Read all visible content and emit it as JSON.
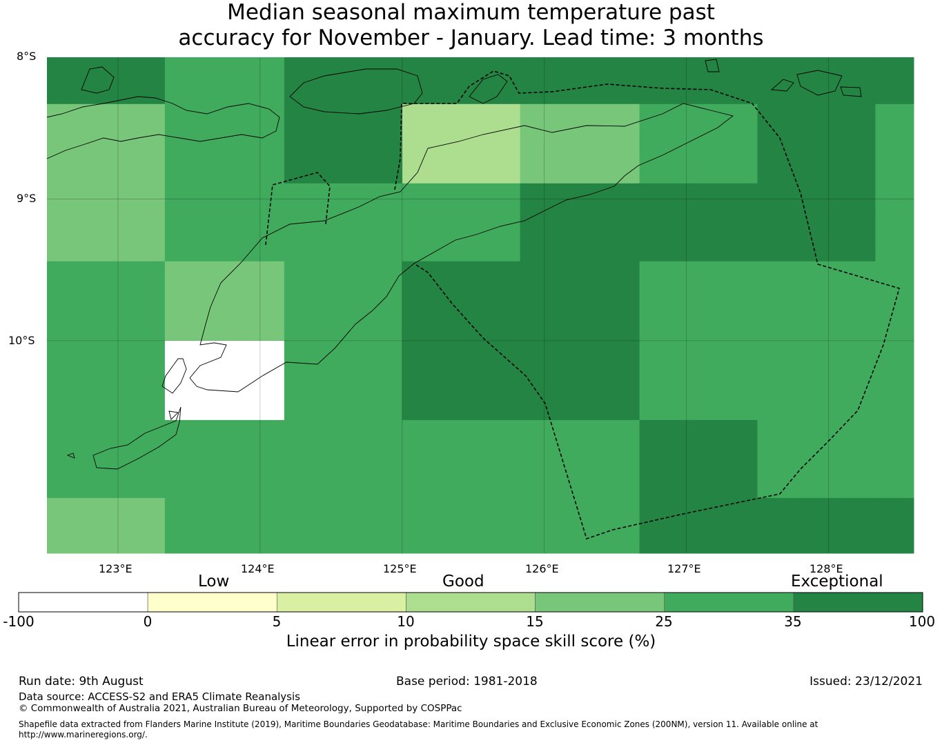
{
  "title": {
    "line1": "Median seasonal maximum temperature past",
    "line2": "accuracy for November - January. Lead time: 3 months"
  },
  "axes": {
    "lat_labels": [
      "8°S",
      "9°S",
      "10°S"
    ],
    "lon_labels": [
      "123°E",
      "124°E",
      "125°E",
      "126°E",
      "127°E",
      "128°E"
    ],
    "lon_range": [
      122.5,
      128.6
    ],
    "lat_range": [
      -8.0,
      -11.5
    ]
  },
  "colorbar": {
    "categories": [
      "Low",
      "Good",
      "Exceptional"
    ],
    "ticks": [
      "-100",
      "0",
      "5",
      "10",
      "15",
      "25",
      "35",
      "100"
    ],
    "label": "Linear error in probability space skill score (%)",
    "colors": [
      "#ffffff",
      "#ffffcc",
      "#d9f0a3",
      "#addd8e",
      "#78c679",
      "#41ab5d",
      "#238443"
    ]
  },
  "grid_cells": {
    "col_edges_lon": [
      122.5,
      123.33,
      124.17,
      125.0,
      125.83,
      126.67,
      127.5,
      128.33,
      128.6
    ],
    "row_edges_lat": [
      -8.0,
      -8.33,
      -8.89,
      -9.44,
      -10.0,
      -10.56,
      -11.11,
      -11.5
    ],
    "classes": [
      [
        6,
        5,
        6,
        6,
        6,
        6,
        6,
        6
      ],
      [
        4,
        5,
        6,
        3,
        4,
        5,
        6,
        5
      ],
      [
        4,
        5,
        5,
        5,
        6,
        6,
        6,
        5
      ],
      [
        5,
        4,
        5,
        6,
        6,
        5,
        5,
        5
      ],
      [
        5,
        0,
        5,
        6,
        6,
        5,
        5,
        5
      ],
      [
        5,
        5,
        5,
        5,
        5,
        6,
        5,
        5
      ],
      [
        4,
        5,
        5,
        5,
        5,
        6,
        6,
        6
      ]
    ]
  },
  "footer": {
    "run_date": "Run date: 9th August",
    "base_period": "Base period: 1981-2018",
    "issued": "Issued: 23/12/2021",
    "data_source": "Data source: ACCESS-S2 and ERA5 Climate Reanalysis",
    "copyright": "© Commonwealth of Australia 2021, Australian Bureau of Meteorology, Supported by COSPPac",
    "shapefile_line1": "Shapefile data extracted from Flanders Marine Institute (2019), Maritime Boundaries Geodatabase: Maritime Boundaries and Exclusive Economic Zones (200NM), version 11. Available online at",
    "shapefile_line2": "http://www.marineregions.org/."
  }
}
